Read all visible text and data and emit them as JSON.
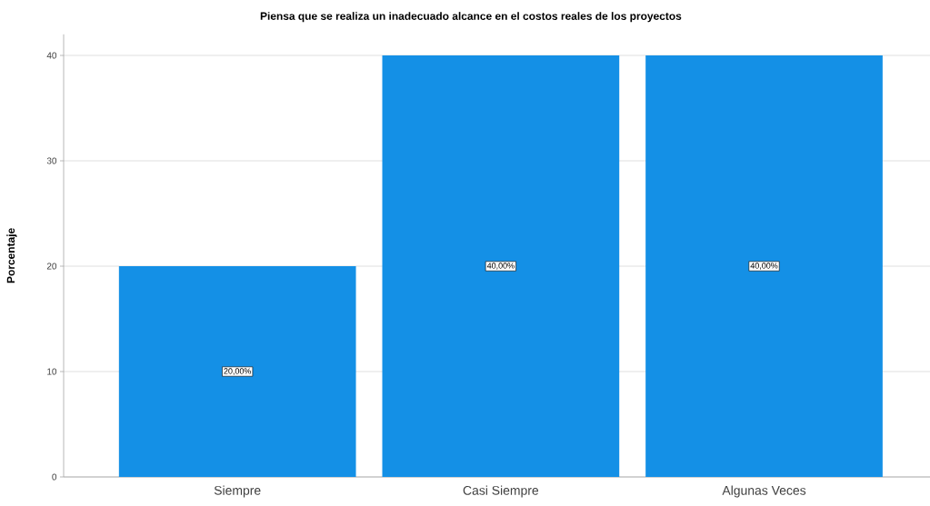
{
  "chart_data": {
    "type": "bar",
    "title": "Piensa que se realiza un inadecuado alcance en el costos reales de los proyectos",
    "ylabel": "Porcentaje",
    "categories": [
      "Siempre",
      "Casi Siempre",
      "Algunas Veces"
    ],
    "values": [
      20,
      40,
      40
    ],
    "value_labels": [
      "20,00%",
      "40,00%",
      "40,00%"
    ],
    "color": "#1490e6",
    "ylim": [
      0,
      42
    ],
    "yticks": [
      0,
      10,
      20,
      30,
      40
    ],
    "grid": "y"
  }
}
